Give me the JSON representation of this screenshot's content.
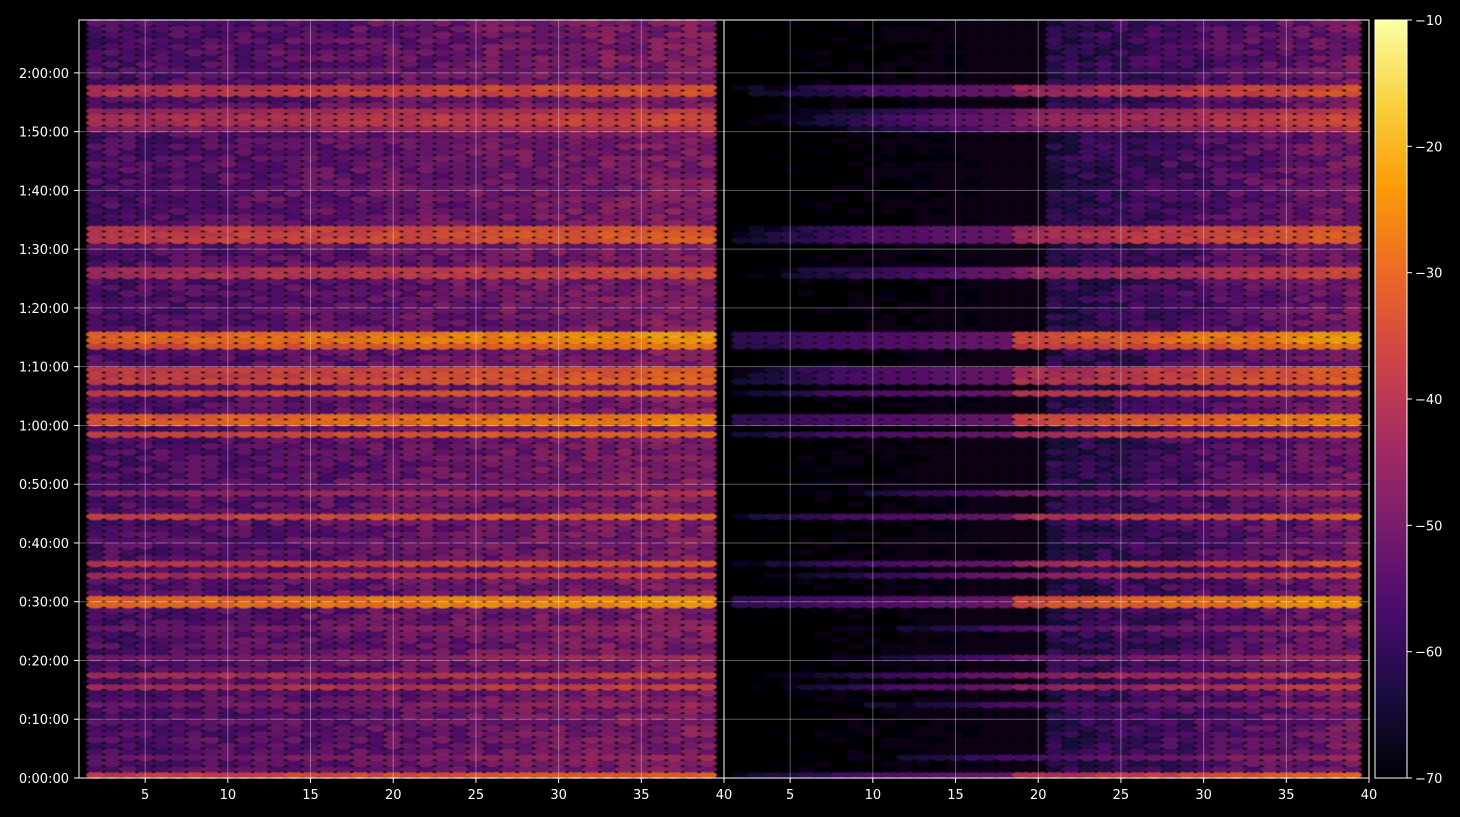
{
  "chart_data": {
    "type": "heatmap",
    "title": "",
    "xlabel": "",
    "ylabel": "",
    "grid": true,
    "background": "#000000",
    "colormap": "inferno",
    "colormap_stops": [
      "#000004",
      "#1b0c41",
      "#4a0c6b",
      "#781c6d",
      "#a52c60",
      "#cf4446",
      "#ed6925",
      "#fb9b06",
      "#f7d13d",
      "#fcffa4"
    ],
    "color_range": [
      -70,
      -10
    ],
    "y_tick_labels": [
      "0:00:00",
      "0:10:00",
      "0:20:00",
      "0:30:00",
      "0:40:00",
      "0:50:00",
      "1:00:00",
      "1:10:00",
      "1:20:00",
      "1:30:00",
      "1:40:00",
      "1:50:00",
      "2:00:00"
    ],
    "y_range_minutes": [
      0,
      129
    ],
    "panels": [
      {
        "name": "left-panel",
        "x_tick_labels": [
          "5",
          "10",
          "15",
          "20",
          "25",
          "30",
          "35",
          "40"
        ],
        "xlim": [
          1,
          40
        ],
        "channels": [
          2,
          39
        ],
        "low_channel_level": -56,
        "high_channel_level": -48,
        "floor_level": -54
      },
      {
        "name": "right-panel",
        "x_tick_labels": [
          "5",
          "10",
          "15",
          "20",
          "25",
          "30",
          "35",
          "40"
        ],
        "xlim": [
          1,
          40
        ],
        "channels": [
          2,
          39
        ],
        "low_channel_level": -74,
        "high_channel_level": -50,
        "floor_level": -72
      }
    ],
    "bright_bands": [
      {
        "time_minutes": 0.2,
        "level": -32
      },
      {
        "time_minutes": 3.5,
        "level": -44
      },
      {
        "time_minutes": 12.5,
        "level": -44
      },
      {
        "time_minutes": 15.5,
        "level": -36
      },
      {
        "time_minutes": 17.5,
        "level": -36
      },
      {
        "time_minutes": 20.5,
        "level": -42
      },
      {
        "time_minutes": 25.5,
        "level": -44
      },
      {
        "time_minutes": 30,
        "level": -26
      },
      {
        "time_minutes": 34.5,
        "level": -36
      },
      {
        "time_minutes": 36.5,
        "level": -32
      },
      {
        "time_minutes": 44.5,
        "level": -30
      },
      {
        "time_minutes": 48.5,
        "level": -40
      },
      {
        "time_minutes": 58.5,
        "level": -30
      },
      {
        "time_minutes": 61,
        "level": -28
      },
      {
        "time_minutes": 65.5,
        "level": -30
      },
      {
        "time_minutes": 67.5,
        "level": -30
      },
      {
        "time_minutes": 69,
        "level": -34
      },
      {
        "time_minutes": 74,
        "level": -30
      },
      {
        "time_minutes": 75,
        "level": -26
      },
      {
        "time_minutes": 86,
        "level": -38
      },
      {
        "time_minutes": 92,
        "level": -34
      },
      {
        "time_minutes": 93.5,
        "level": -32
      },
      {
        "time_minutes": 110.5,
        "level": -40
      },
      {
        "time_minutes": 112,
        "level": -38
      },
      {
        "time_minutes": 113.5,
        "level": -38
      },
      {
        "time_minutes": 117,
        "level": -36
      }
    ],
    "colorbar": {
      "tick_labels": [
        "−10",
        "−20",
        "−30",
        "−40",
        "−50",
        "−60",
        "−70"
      ],
      "tick_values": [
        -10,
        -20,
        -30,
        -40,
        -50,
        -60,
        -70
      ]
    }
  }
}
